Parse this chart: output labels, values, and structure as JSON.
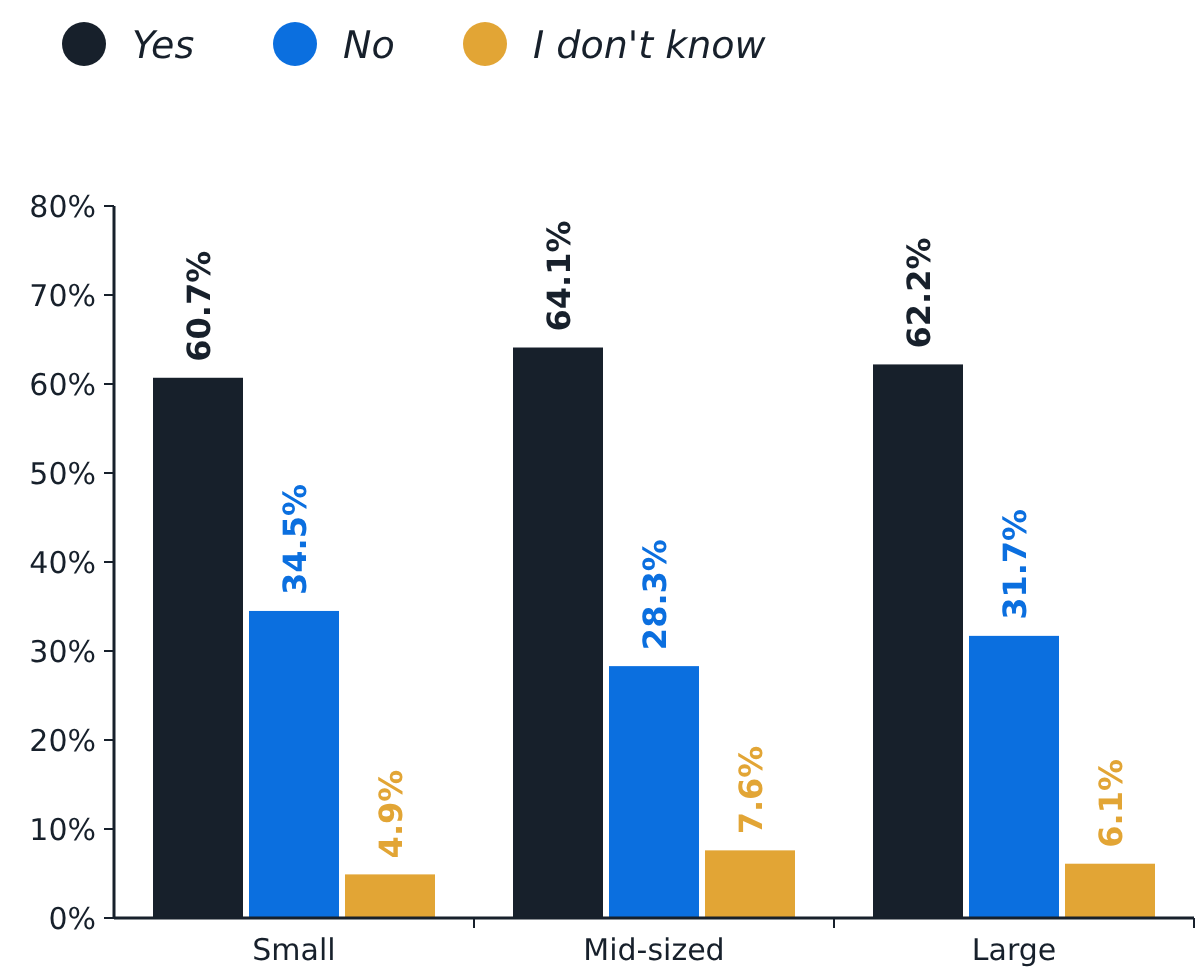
{
  "chart_data": {
    "type": "bar",
    "categories": [
      "Small",
      "Mid-sized",
      "Large"
    ],
    "series": [
      {
        "name": "Yes",
        "color": "#17202b",
        "values": [
          60.7,
          64.1,
          62.2
        ],
        "value_labels": [
          "60.7%",
          "64.1%",
          "62.2%"
        ]
      },
      {
        "name": "No",
        "color": "#0b6fdf",
        "values": [
          34.5,
          28.3,
          31.7
        ],
        "value_labels": [
          "34.5%",
          "28.3%",
          "31.7%"
        ]
      },
      {
        "name": "I don't know",
        "color": "#e2a535",
        "values": [
          4.9,
          7.6,
          6.1
        ],
        "value_labels": [
          "4.9%",
          "7.6%",
          "6.1%"
        ]
      }
    ],
    "ylim": [
      0,
      80
    ],
    "yticks": [
      {
        "value": 0,
        "label": "0%"
      },
      {
        "value": 10,
        "label": "10%"
      },
      {
        "value": 20,
        "label": "20%"
      },
      {
        "value": 30,
        "label": "30%"
      },
      {
        "value": 40,
        "label": "40%"
      },
      {
        "value": 50,
        "label": "50%"
      },
      {
        "value": 60,
        "label": "60%"
      },
      {
        "value": 70,
        "label": "70%"
      },
      {
        "value": 80,
        "label": "80%"
      }
    ],
    "legend": "top left"
  }
}
